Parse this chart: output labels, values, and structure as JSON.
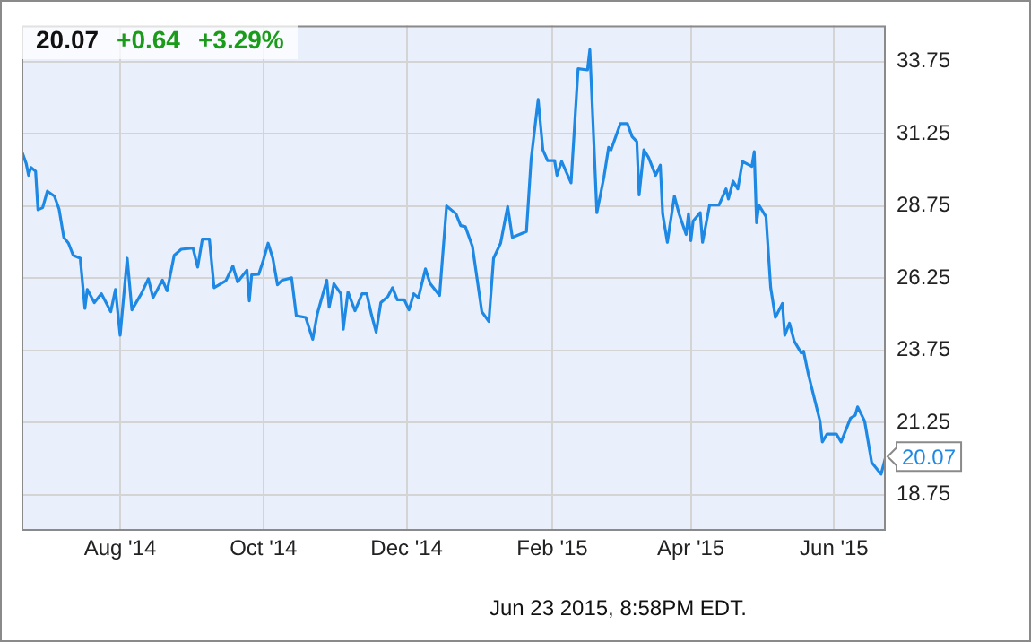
{
  "chart_data": {
    "type": "line",
    "x": [
      "2014-06-20",
      "2014-06-22",
      "2014-06-23",
      "2014-06-24",
      "2014-06-26",
      "2014-06-27",
      "2014-06-29",
      "2014-07-01",
      "2014-07-04",
      "2014-07-06",
      "2014-07-08",
      "2014-07-10",
      "2014-07-12",
      "2014-07-15",
      "2014-07-17",
      "2014-07-18",
      "2014-07-21",
      "2014-07-24",
      "2014-07-28",
      "2014-07-30",
      "2014-08-01",
      "2014-08-04",
      "2014-08-06",
      "2014-08-10",
      "2014-08-13",
      "2014-08-15",
      "2014-08-19",
      "2014-08-21",
      "2014-08-24",
      "2014-08-27",
      "2014-09-01",
      "2014-09-03",
      "2014-09-05",
      "2014-09-08",
      "2014-09-10",
      "2014-09-15",
      "2014-09-18",
      "2014-09-20",
      "2014-09-24",
      "2014-09-25",
      "2014-09-26",
      "2014-09-29",
      "2014-10-01",
      "2014-10-03",
      "2014-10-05",
      "2014-10-07",
      "2014-10-09",
      "2014-10-13",
      "2014-10-15",
      "2014-10-19",
      "2014-10-22",
      "2014-10-24",
      "2014-10-28",
      "2014-10-29",
      "2014-10-31",
      "2014-11-03",
      "2014-11-04",
      "2014-11-06",
      "2014-11-09",
      "2014-11-12",
      "2014-11-14",
      "2014-11-16",
      "2014-11-18",
      "2014-11-20",
      "2014-11-23",
      "2014-11-25",
      "2014-11-27",
      "2014-11-30",
      "2014-12-02",
      "2014-12-04",
      "2014-12-06",
      "2014-12-09",
      "2014-12-11",
      "2014-12-15",
      "2014-12-18",
      "2014-12-22",
      "2014-12-24",
      "2014-12-26",
      "2014-12-29",
      "2015-01-02",
      "2015-01-05",
      "2015-01-07",
      "2015-01-10",
      "2015-01-13",
      "2015-01-15",
      "2015-01-21",
      "2015-01-23",
      "2015-01-26",
      "2015-01-28",
      "2015-01-30",
      "2015-02-02",
      "2015-02-03",
      "2015-02-05",
      "2015-02-09",
      "2015-02-12",
      "2015-02-16",
      "2015-02-17",
      "2015-02-20",
      "2015-02-23",
      "2015-02-25",
      "2015-02-26",
      "2015-03-02",
      "2015-03-05",
      "2015-03-07",
      "2015-03-09",
      "2015-03-10",
      "2015-03-12",
      "2015-03-14",
      "2015-03-17",
      "2015-03-19",
      "2015-03-20",
      "2015-03-22",
      "2015-03-25",
      "2015-03-27",
      "2015-03-30",
      "2015-03-31",
      "2015-04-01",
      "2015-04-02",
      "2015-04-05",
      "2015-04-06",
      "2015-04-09",
      "2015-04-13",
      "2015-04-16",
      "2015-04-17",
      "2015-04-19",
      "2015-04-21",
      "2015-04-23",
      "2015-04-27",
      "2015-04-28",
      "2015-04-29",
      "2015-04-30",
      "2015-05-03",
      "2015-05-05",
      "2015-05-07",
      "2015-05-10",
      "2015-05-11",
      "2015-05-13",
      "2015-05-15",
      "2015-05-18",
      "2015-05-19",
      "2015-05-21",
      "2015-05-26",
      "2015-05-27",
      "2015-05-29",
      "2015-06-02",
      "2015-06-04",
      "2015-06-08",
      "2015-06-10",
      "2015-06-11",
      "2015-06-14",
      "2015-06-17",
      "2015-06-21",
      "2015-06-23"
    ],
    "series": [
      {
        "color": "#1e88e5",
        "values": [
          30.67,
          30.22,
          29.81,
          30.08,
          29.95,
          28.62,
          28.69,
          29.26,
          29.09,
          28.64,
          27.66,
          27.46,
          27.04,
          26.94,
          25.2,
          25.86,
          25.4,
          25.71,
          25.09,
          25.86,
          24.27,
          26.94,
          25.15,
          25.71,
          26.23,
          25.57,
          26.18,
          25.81,
          27.04,
          27.25,
          27.29,
          26.63,
          27.6,
          27.6,
          25.92,
          26.16,
          26.67,
          26.12,
          26.53,
          25.46,
          26.37,
          26.38,
          26.88,
          27.46,
          26.94,
          26.02,
          26.18,
          26.26,
          24.95,
          24.89,
          24.13,
          25.03,
          26.18,
          25.24,
          26.06,
          25.71,
          24.48,
          25.77,
          25.12,
          25.71,
          25.71,
          24.99,
          24.38,
          25.4,
          25.61,
          25.92,
          25.5,
          25.5,
          25.15,
          25.71,
          25.57,
          26.57,
          26.06,
          25.65,
          28.75,
          28.48,
          28.07,
          28.03,
          27.35,
          25.09,
          24.75,
          26.94,
          27.46,
          28.73,
          27.66,
          27.86,
          30.37,
          32.44,
          30.69,
          30.32,
          30.32,
          29.81,
          30.29,
          29.55,
          33.5,
          33.46,
          34.16,
          28.52,
          29.75,
          30.78,
          30.69,
          31.6,
          31.6,
          31.15,
          30.98,
          29.13,
          30.69,
          30.43,
          29.81,
          30.16,
          28.48,
          27.49,
          29.09,
          28.48,
          27.76,
          28.48,
          27.55,
          28.23,
          28.52,
          27.49,
          28.78,
          28.78,
          29.34,
          28.99,
          29.61,
          29.34,
          30.29,
          30.12,
          30.63,
          28.17,
          28.78,
          28.38,
          25.92,
          24.89,
          25.37,
          24.27,
          24.69,
          24.07,
          23.66,
          23.72,
          22.94,
          21.3,
          20.58,
          20.85,
          20.85,
          20.58,
          21.4,
          21.5,
          21.79,
          21.3,
          19.87,
          19.46,
          20.07
        ]
      }
    ],
    "xlim": [
      "2014-06-20",
      "2015-06-23"
    ],
    "xticks": [
      {
        "value": "2014-08-01",
        "label": "Aug '14"
      },
      {
        "value": "2014-10-01",
        "label": "Oct '14"
      },
      {
        "value": "2014-12-01",
        "label": "Dec '14"
      },
      {
        "value": "2015-02-01",
        "label": "Feb '15"
      },
      {
        "value": "2015-04-01",
        "label": "Apr '15"
      },
      {
        "value": "2015-06-01",
        "label": "Jun '15"
      }
    ],
    "ylim": [
      17.5,
      35
    ],
    "yticks": [
      {
        "value": 18.75,
        "label": "18.75"
      },
      {
        "value": 21.25,
        "label": "21.25"
      },
      {
        "value": 23.75,
        "label": "23.75"
      },
      {
        "value": 26.25,
        "label": "26.25"
      },
      {
        "value": 28.75,
        "label": "28.75"
      },
      {
        "value": 31.25,
        "label": "31.25"
      },
      {
        "value": 33.75,
        "label": "33.75"
      }
    ],
    "grid": true,
    "legend": false,
    "marker": "none",
    "line_style": "solid",
    "annotations": [
      "20.07",
      "+0.64",
      "+3.29%",
      "Jun 23 2015, 8:58PM EDT.",
      {
        "text": "20.07",
        "x": "2015-06-23",
        "y": 20.07
      }
    ]
  }
}
